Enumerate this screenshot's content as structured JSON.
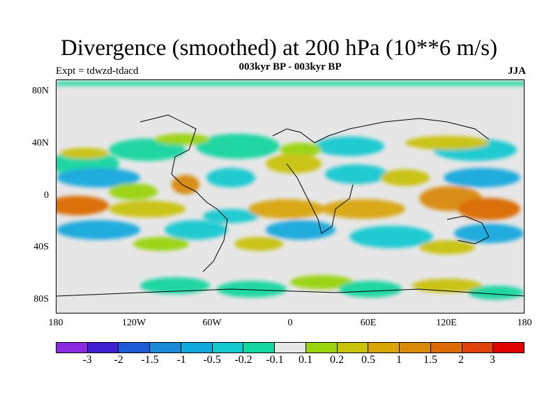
{
  "header": {
    "title": "Divergence (smoothed) at 200 hPa (10**6 m/s)",
    "subtitle": "003kyr BP - 003kyr BP",
    "experiment": "Expt = tdwzd-tdacd",
    "season": "JJA"
  },
  "map": {
    "y_labels": [
      "80N",
      "40N",
      "0",
      "40S",
      "80S"
    ],
    "x_labels": [
      "180",
      "120W",
      "60W",
      "0",
      "60E",
      "120E",
      "180"
    ]
  },
  "colorbar": {
    "colors": [
      "#8a2be2",
      "#3f1fd0",
      "#1e5ad6",
      "#1a8ad8",
      "#12a9dd",
      "#13c9d0",
      "#13d6a0",
      "#e8e8e8",
      "#9ad40e",
      "#c9c20a",
      "#d9a60a",
      "#d98a08",
      "#dc6b06",
      "#e0400a",
      "#e00000"
    ],
    "labels": [
      "-3",
      "-2",
      "-1.5",
      "-1",
      "-0.5",
      "-0.2",
      "-0.1",
      "0.1",
      "0.2",
      "0.5",
      "1",
      "1.5",
      "2",
      "3"
    ]
  }
}
